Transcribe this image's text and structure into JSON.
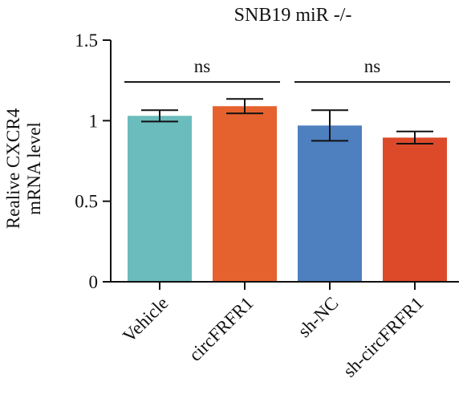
{
  "chart_data": {
    "type": "bar",
    "title": "SNB19 miR -/-",
    "ylabel_lines": [
      "Realive CXCR4",
      "mRNA level"
    ],
    "xlabel": "",
    "ylim": [
      0,
      1.5
    ],
    "yticks": [
      0,
      0.5,
      1,
      1.5
    ],
    "ytick_labels": [
      "0",
      "0.5",
      "1",
      "1.5"
    ],
    "categories": [
      "Vehicle",
      "circFRFR1",
      "sh-NC",
      "sh-circFRFR1"
    ],
    "values": [
      1.03,
      1.09,
      0.97,
      0.895
    ],
    "errors": [
      0.035,
      0.045,
      0.095,
      0.038
    ],
    "colors": [
      "#6bbcbc",
      "#e5622e",
      "#4e7fbf",
      "#dc4a2a"
    ],
    "significance": [
      {
        "from": 0,
        "to": 1,
        "y": 1.25,
        "label": "ns"
      },
      {
        "from": 2,
        "to": 3,
        "y": 1.25,
        "label": "ns"
      }
    ],
    "legend": "none",
    "grid": false
  }
}
